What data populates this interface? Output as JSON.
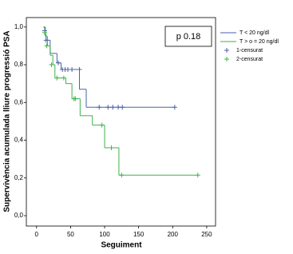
{
  "chart_data": {
    "type": "step",
    "step": "post",
    "xlabel": "Seguiment",
    "ylabel": "Supervivència acumulada lliure progressió PSA",
    "annotation": "p 0.18",
    "xlim": [
      -15,
      263
    ],
    "ylim": [
      -0.055,
      1.05
    ],
    "xticks": [
      0,
      50,
      100,
      150,
      200,
      250
    ],
    "yticks": [
      {
        "value": 0,
        "label": "0,0"
      },
      {
        "value": 0.2,
        "label": "0,2"
      },
      {
        "value": 0.4,
        "label": "0,4"
      },
      {
        "value": 0.6,
        "label": "0,6"
      },
      {
        "value": 0.8,
        "label": "0,8"
      },
      {
        "value": 1.0,
        "label": "1,0"
      }
    ],
    "grid": false,
    "legend": "right",
    "series": [
      {
        "name": "T < 20 ng/dl",
        "color": "#4a62a8",
        "x": [
          10,
          12,
          14,
          20,
          30,
          36,
          63,
          73,
          203
        ],
        "values": [
          1.0,
          0.96,
          0.93,
          0.86,
          0.81,
          0.775,
          0.67,
          0.575,
          0.575
        ]
      },
      {
        "name": "T > o = 20 ng/dl",
        "color": "#3db34a",
        "x": [
          10,
          13,
          16,
          20,
          24,
          27,
          43,
          52,
          64,
          82,
          100,
          121,
          237
        ],
        "values": [
          1.0,
          0.95,
          0.9,
          0.85,
          0.8,
          0.73,
          0.7,
          0.62,
          0.53,
          0.48,
          0.36,
          0.215,
          0.215
        ]
      },
      {
        "name": "1-censurat",
        "color": "#4a62a8",
        "marker": "+",
        "x": [
          12,
          14,
          32,
          38,
          42,
          46,
          52,
          63,
          92,
          105,
          112,
          120,
          126,
          203
        ],
        "values": [
          0.98,
          0.93,
          0.81,
          0.775,
          0.775,
          0.775,
          0.775,
          0.775,
          0.575,
          0.575,
          0.575,
          0.575,
          0.575,
          0.575
        ]
      },
      {
        "name": "2-censurat",
        "color": "#3db34a",
        "marker": "+",
        "x": [
          12,
          15,
          22,
          30,
          40,
          55,
          57,
          96,
          110,
          125,
          237
        ],
        "values": [
          0.97,
          0.9,
          0.8,
          0.73,
          0.73,
          0.62,
          0.62,
          0.48,
          0.36,
          0.215,
          0.215
        ]
      }
    ]
  }
}
